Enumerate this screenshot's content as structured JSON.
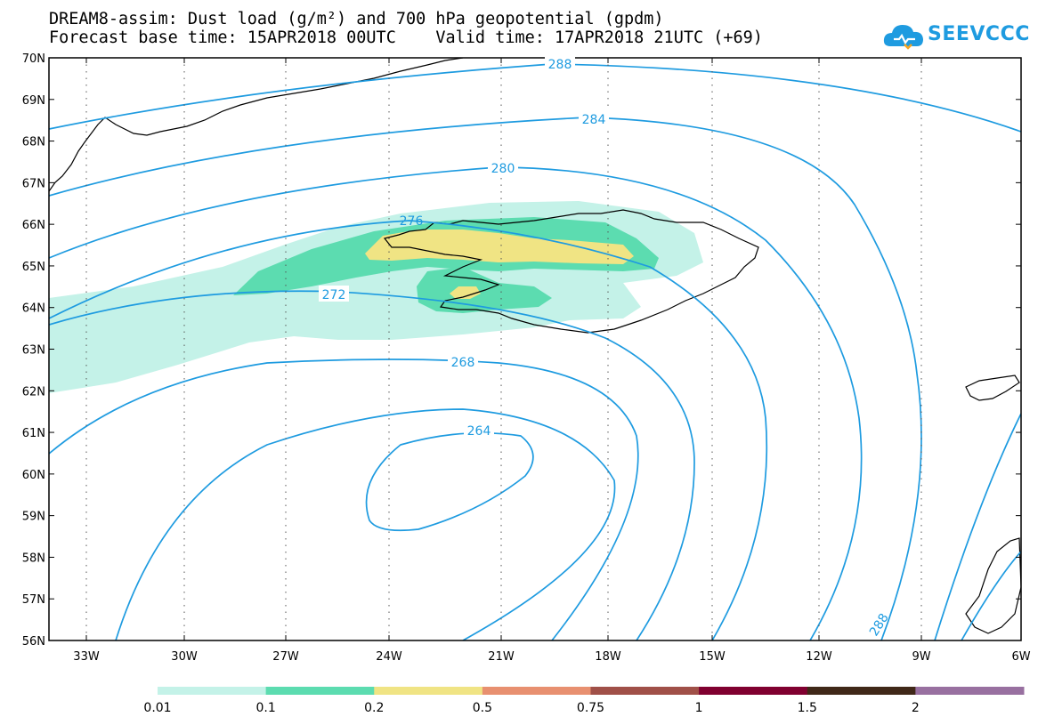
{
  "title_line1": "DREAM8-assim: Dust load (g/m²) and 700 hPa geopotential (gpdm)",
  "title_line2": "Forecast base time: 15APR2018 00UTC    Valid time: 17APR2018 21UTC (+69)",
  "logo_text": "SEEVCCC",
  "logo_icon": "cloud-icon",
  "lat_labels": [
    "70N",
    "69N",
    "68N",
    "67N",
    "66N",
    "65N",
    "64N",
    "63N",
    "62N",
    "61N",
    "60N",
    "59N",
    "58N",
    "57N",
    "56N"
  ],
  "lon_labels": [
    "33W",
    "30W",
    "27W",
    "24W",
    "21W",
    "18W",
    "15W",
    "12W",
    "9W",
    "6W"
  ],
  "contour_labels": [
    "288",
    "284",
    "280",
    "276",
    "272",
    "268",
    "264",
    "288"
  ],
  "colorbar": {
    "labels": [
      "0.01",
      "0.1",
      "0.2",
      "0.5",
      "0.75",
      "1",
      "1.5",
      "2"
    ],
    "colors": [
      "#c4f2e8",
      "#5cdcb0",
      "#f0e484",
      "#e89070",
      "#a05048",
      "#800030",
      "#402818",
      "#9870a0"
    ]
  },
  "contour_color": "#1e9be0"
}
